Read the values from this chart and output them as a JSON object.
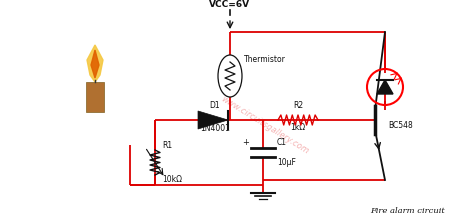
{
  "bg_color": "#ffffff",
  "wire_color": "#dd0000",
  "wire_lw": 1.3,
  "component_color": "#111111",
  "title": "Fire alarm circuit",
  "watermark": "www.circuitsgallery.com",
  "vcc_label": "VCC=6V",
  "thermistor_label": "Thermistor",
  "d1_label": "D1",
  "d1_part": "1N4001",
  "r1_label": "R1",
  "r1_val": "10kΩ",
  "r2_label": "R2",
  "r2_val": "1kΩ",
  "c1_label": "C1",
  "c1_val": "10μF",
  "transistor_label": "BC548",
  "led_color": "#cc0000",
  "candle_flame_color1": "#f5c842",
  "candle_flame_color2": "#e06000",
  "candle_body_color": "#b07030"
}
